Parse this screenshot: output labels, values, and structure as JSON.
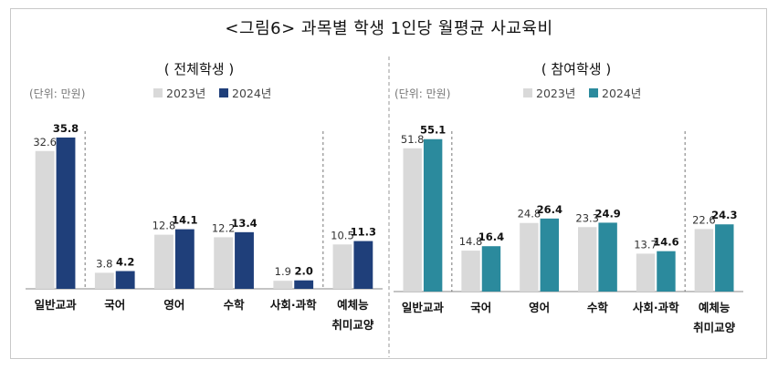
{
  "title": "<그림6> 과목별 학생 1인당 월평균 사교육비",
  "colors": {
    "y2023": "#d9d9d9",
    "y2024_left": "#1f3f7a",
    "y2024_right": "#2b8a9d"
  },
  "chart_data": [
    {
      "type": "bar",
      "title": "( 전체학생 )",
      "unit_label": "(단위: 만원)",
      "categories": [
        "일반교과",
        "국어",
        "영어",
        "수학",
        "사회·과학",
        "예체능 취미교양"
      ],
      "category_lines": [
        [
          "일반교과"
        ],
        [
          "국어"
        ],
        [
          "영어"
        ],
        [
          "수학"
        ],
        [
          "사회·과학"
        ],
        [
          "예체능",
          "취미교양"
        ]
      ],
      "series": [
        {
          "name": "2023년",
          "values": [
            32.6,
            3.8,
            12.8,
            12.2,
            1.9,
            10.5
          ]
        },
        {
          "name": "2024년",
          "values": [
            35.8,
            4.2,
            14.1,
            13.4,
            2.0,
            11.3
          ]
        }
      ],
      "legend": "top",
      "grid": false
    },
    {
      "type": "bar",
      "title": "( 참여학생 )",
      "unit_label": "(단위: 만원)",
      "categories": [
        "일반교과",
        "국어",
        "영어",
        "수학",
        "사회·과학",
        "예체능 취미교양"
      ],
      "category_lines": [
        [
          "일반교과"
        ],
        [
          "국어"
        ],
        [
          "영어"
        ],
        [
          "수학"
        ],
        [
          "사회·과학"
        ],
        [
          "예체능",
          "취미교양"
        ]
      ],
      "series": [
        {
          "name": "2023년",
          "values": [
            51.8,
            14.8,
            24.8,
            23.3,
            13.7,
            22.6
          ]
        },
        {
          "name": "2024년",
          "values": [
            55.1,
            16.4,
            26.4,
            24.9,
            14.6,
            24.3
          ]
        }
      ],
      "legend": "top",
      "grid": false
    }
  ]
}
